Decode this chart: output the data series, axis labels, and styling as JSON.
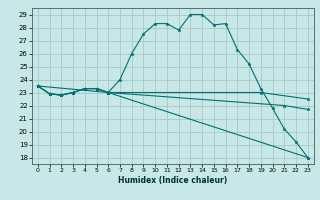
{
  "xlabel": "Humidex (Indice chaleur)",
  "bg_color": "#c8e8e8",
  "grid_color": "#a8c8c8",
  "line_color": "#007070",
  "xlim": [
    -0.5,
    23.5
  ],
  "ylim": [
    17.5,
    29.5
  ],
  "yticks": [
    18,
    19,
    20,
    21,
    22,
    23,
    24,
    25,
    26,
    27,
    28,
    29
  ],
  "xticks": [
    0,
    1,
    2,
    3,
    4,
    5,
    6,
    7,
    8,
    9,
    10,
    11,
    12,
    13,
    14,
    15,
    16,
    17,
    18,
    19,
    20,
    21,
    22,
    23
  ],
  "series": [
    {
      "x": [
        0,
        1,
        2,
        3,
        4,
        5,
        6,
        7,
        8,
        9,
        10,
        11,
        12,
        13,
        14,
        15,
        16,
        17,
        18,
        19,
        20,
        21,
        22,
        23
      ],
      "y": [
        23.5,
        22.9,
        22.8,
        23.0,
        23.3,
        23.3,
        23.0,
        24.0,
        26.0,
        27.5,
        28.3,
        28.3,
        27.8,
        29.0,
        29.0,
        28.2,
        28.3,
        26.3,
        25.2,
        23.3,
        21.8,
        20.2,
        19.2,
        18.0
      ]
    },
    {
      "x": [
        0,
        1,
        2,
        3,
        4,
        5,
        6,
        19,
        23
      ],
      "y": [
        23.5,
        22.9,
        22.8,
        23.0,
        23.3,
        23.3,
        23.0,
        23.0,
        22.5
      ]
    },
    {
      "x": [
        0,
        1,
        2,
        3,
        4,
        5,
        6,
        21,
        23
      ],
      "y": [
        23.5,
        22.9,
        22.8,
        23.0,
        23.3,
        23.3,
        23.0,
        22.0,
        21.7
      ]
    },
    {
      "x": [
        0,
        6,
        23
      ],
      "y": [
        23.5,
        23.0,
        18.0
      ]
    }
  ]
}
